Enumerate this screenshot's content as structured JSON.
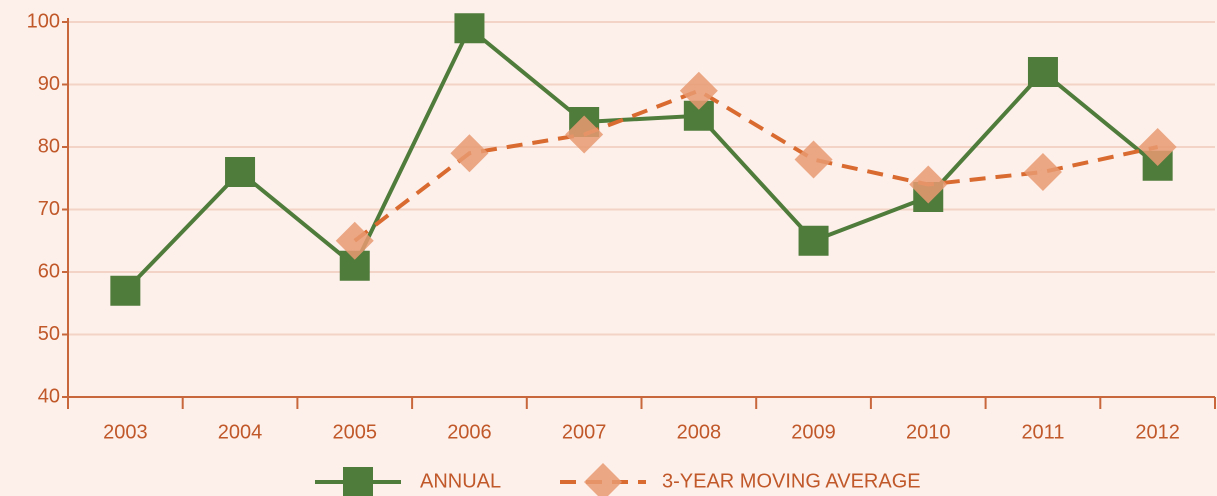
{
  "chart_data": {
    "type": "line",
    "categories": [
      "2003",
      "2004",
      "2005",
      "2006",
      "2007",
      "2008",
      "2009",
      "2010",
      "2011",
      "2012"
    ],
    "series": [
      {
        "name": "ANNUAL",
        "color": "#4f7b3b",
        "marker": "square",
        "values": [
          57,
          76,
          61,
          99,
          84,
          85,
          65,
          72,
          92,
          77
        ]
      },
      {
        "name": "3-YEAR MOVING AVERAGE",
        "color": "#d96a30",
        "marker": "diamond",
        "dashed": true,
        "values": [
          null,
          null,
          65,
          79,
          82,
          89,
          78,
          74,
          76,
          80
        ]
      }
    ],
    "ylim": [
      40,
      100
    ],
    "yticks": [
      40,
      50,
      60,
      70,
      80,
      90,
      100
    ],
    "grid": true,
    "legend": "bottom"
  }
}
